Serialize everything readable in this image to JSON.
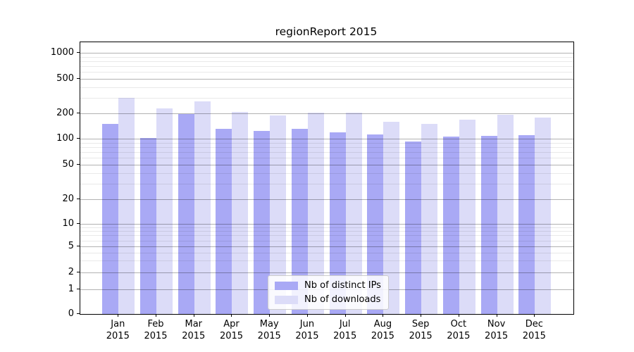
{
  "title": "regionReport 2015",
  "colors": {
    "ips_bar": "#a9a9f5",
    "downloads_bar": "#dcdcf8",
    "grid_major": "rgba(0,0,0,0.30)",
    "grid_minor": "rgba(0,0,0,0.085)",
    "axis": "#000000",
    "legend_border": "#cccccc"
  },
  "legend": {
    "items": [
      {
        "label": "Nb of distinct IPs",
        "series": "ips"
      },
      {
        "label": "Nb of downloads",
        "series": "downloads"
      }
    ]
  },
  "y_axis": {
    "ticks": [
      {
        "v": 1000,
        "label": "1000"
      },
      {
        "v": 500,
        "label": "500"
      },
      {
        "v": 200,
        "label": "200"
      },
      {
        "v": 100,
        "label": "100"
      },
      {
        "v": 50,
        "label": "50"
      },
      {
        "v": 20,
        "label": "20"
      },
      {
        "v": 10,
        "label": "10"
      },
      {
        "v": 5,
        "label": "5"
      },
      {
        "v": 2,
        "label": "2"
      },
      {
        "v": 1,
        "label": "1"
      },
      {
        "v": 0,
        "label": "0"
      }
    ],
    "minor_grid_values": [
      3,
      4,
      6,
      7,
      8,
      9,
      30,
      40,
      60,
      70,
      80,
      90,
      300,
      400,
      600,
      700,
      800,
      900
    ]
  },
  "x_axis": {
    "months": [
      "Jan",
      "Feb",
      "Mar",
      "Apr",
      "May",
      "Jun",
      "Jul",
      "Aug",
      "Sep",
      "Oct",
      "Nov",
      "Dec"
    ],
    "year": "2015"
  },
  "chart_data": {
    "type": "bar",
    "title": "regionReport 2015",
    "categories": [
      "Jan 2015",
      "Feb 2015",
      "Mar 2015",
      "Apr 2015",
      "May 2015",
      "Jun 2015",
      "Jul 2015",
      "Aug 2015",
      "Sep 2015",
      "Oct 2015",
      "Nov 2015",
      "Dec 2015"
    ],
    "series": [
      {
        "name": "Nb of distinct IPs",
        "color": "#a9a9f5",
        "values": [
          150,
          102,
          195,
          130,
          124,
          131,
          118,
          112,
          92,
          105,
          108,
          110
        ]
      },
      {
        "name": "Nb of downloads",
        "color": "#dcdcf8",
        "values": [
          300,
          228,
          272,
          208,
          188,
          202,
          202,
          160,
          150,
          168,
          194,
          179
        ]
      }
    ],
    "yscale": "log-like (labeled ticks 0,1,2,5,10,20,50,100,200,500,1000)",
    "y_ticks": [
      0,
      1,
      2,
      5,
      10,
      20,
      50,
      100,
      200,
      500,
      1000
    ],
    "ylim": [
      0,
      1300
    ],
    "grid": "on, drawn over bars (major at labeled ticks, log minors lighter)",
    "legend_position": "lower center inside plot"
  }
}
